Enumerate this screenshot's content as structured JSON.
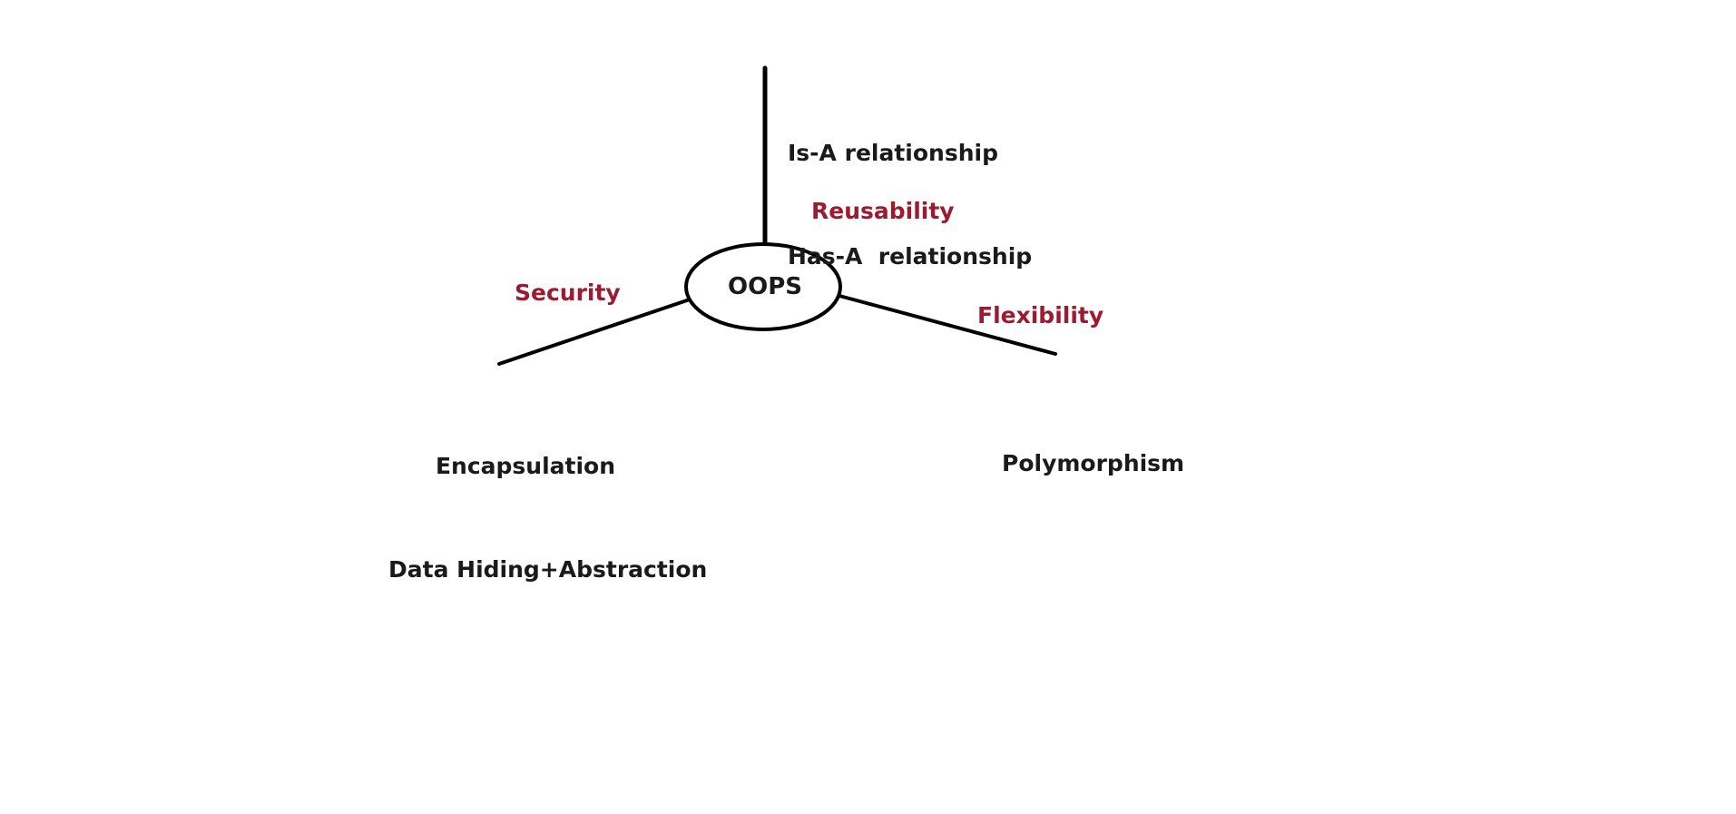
{
  "diagram": {
    "center": {
      "label": "OOPS"
    },
    "branches": [
      {
        "key": "top",
        "benefit": "Reusability",
        "concepts": [
          "Is-A relationship",
          "Has-A  relationship"
        ]
      },
      {
        "key": "left",
        "benefit": "Security",
        "concepts": [
          "Encapsulation",
          "Data Hiding+Abstraction"
        ]
      },
      {
        "key": "right",
        "benefit": "Flexibility",
        "concepts": [
          "Polymorphism"
        ]
      }
    ],
    "colors": {
      "benefit": "#9b1b33",
      "concept": "#1a1a1a",
      "stroke": "#000000",
      "background": "#ffffff"
    }
  }
}
